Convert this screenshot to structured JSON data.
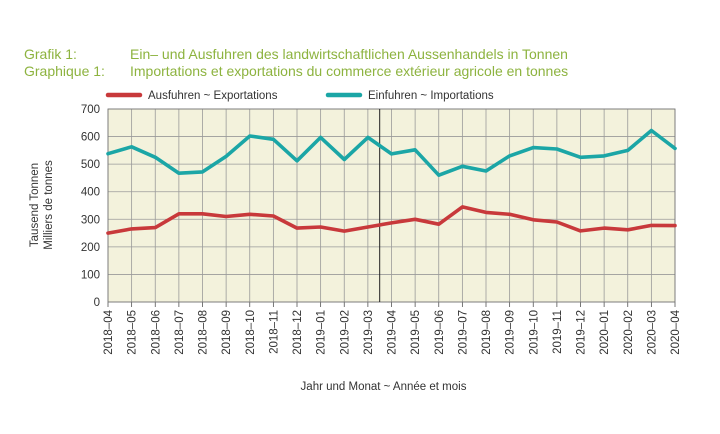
{
  "title": {
    "de_key": "Grafik 1:",
    "de_text": "Ein– und Ausfuhren des landwirtschaftlichen Aussenhandels in Tonnen",
    "fr_key": "Graphique 1:",
    "fr_text": "Importations et exportations du commerce extérieur agricole en tonnes"
  },
  "colors": {
    "plot_bg": "#f3f2dc",
    "exports": "#c8393b",
    "imports": "#1ba6a6",
    "title": "#8db33f",
    "grid": "#9a9a9a"
  },
  "chart_data": {
    "type": "line",
    "ylabel_line1": "Tausend Tonnen",
    "ylabel_line2": "Milliers de tonnes",
    "xlabel": "Jahr und Monat  ~  Année et mois",
    "ylim": [
      0,
      700
    ],
    "yticks": [
      0,
      100,
      200,
      300,
      400,
      500,
      600,
      700
    ],
    "grid": true,
    "legend_position": "top",
    "categories": [
      "2018–04",
      "2018–05",
      "2018–06",
      "2018–07",
      "2018–08",
      "2018–09",
      "2018–10",
      "2018–11",
      "2018–12",
      "2019–01",
      "2019–02",
      "2019–03",
      "2019–04",
      "2019–05",
      "2019–06",
      "2019–07",
      "2019–08",
      "2019–09",
      "2019–10",
      "2019–11",
      "2019–12",
      "2020–01",
      "2020–02",
      "2020–03",
      "2020–04"
    ],
    "divider_after": "2019–03",
    "series": [
      {
        "name": "Ausfuhren  ~  Exportations",
        "color": "#c8393b",
        "values": [
          250,
          265,
          270,
          320,
          320,
          310,
          318,
          312,
          268,
          272,
          257,
          272,
          287,
          300,
          282,
          345,
          325,
          318,
          298,
          290,
          258,
          268,
          262,
          278,
          277
        ]
      },
      {
        "name": "Einfuhren  ~  Importations",
        "color": "#1ba6a6",
        "values": [
          538,
          563,
          525,
          467,
          472,
          528,
          602,
          590,
          512,
          597,
          517,
          597,
          537,
          552,
          460,
          492,
          475,
          530,
          560,
          555,
          525,
          530,
          550,
          622,
          557
        ]
      }
    ]
  }
}
